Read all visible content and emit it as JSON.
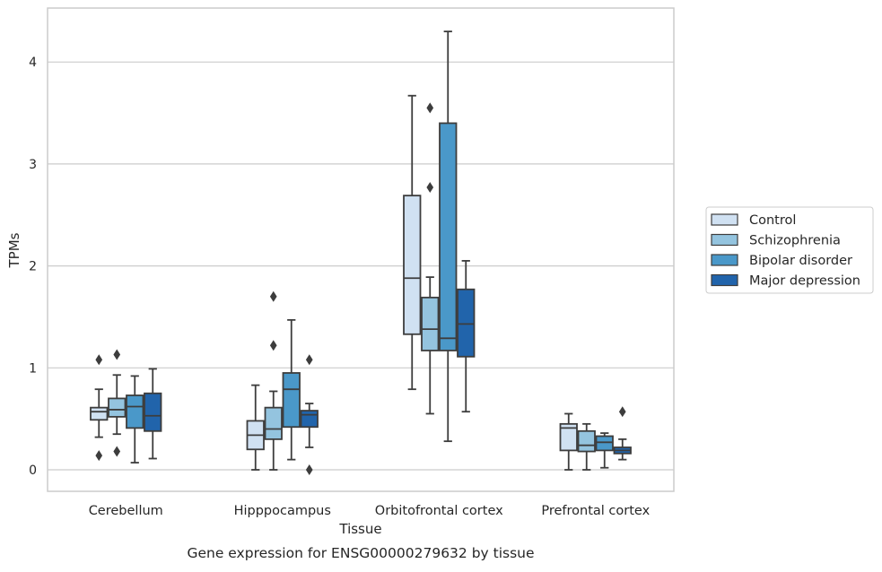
{
  "caption": "Gene expression for ENSG00000279632 by tissue",
  "chart_data": {
    "type": "box",
    "xlabel": "Tissue",
    "ylabel": "TPMs",
    "ylim": [
      -0.2,
      4.5
    ],
    "yticks": [
      0,
      1,
      2,
      3,
      4
    ],
    "grid": "horizontal",
    "legend_position": "right",
    "categories": [
      "Cerebellum",
      "Hipppocampus",
      "Orbitofrontal cortex",
      "Prefrontal cortex"
    ],
    "series": [
      {
        "name": "Control",
        "color": "#d0e1f2",
        "boxes": [
          {
            "whislo": 0.32,
            "q1": 0.49,
            "med": 0.57,
            "q3": 0.61,
            "whishi": 0.79,
            "fliers": [
              1.08,
              0.14
            ]
          },
          {
            "whislo": 0.0,
            "q1": 0.2,
            "med": 0.34,
            "q3": 0.48,
            "whishi": 0.83,
            "fliers": []
          },
          {
            "whislo": 0.79,
            "q1": 1.33,
            "med": 1.88,
            "q3": 2.69,
            "whishi": 3.67,
            "fliers": []
          },
          {
            "whislo": 0.0,
            "q1": 0.19,
            "med": 0.41,
            "q3": 0.45,
            "whishi": 0.55,
            "fliers": []
          }
        ]
      },
      {
        "name": "Schizophrenia",
        "color": "#94c4df",
        "boxes": [
          {
            "whislo": 0.35,
            "q1": 0.52,
            "med": 0.59,
            "q3": 0.7,
            "whishi": 0.93,
            "fliers": [
              1.13,
              0.18
            ]
          },
          {
            "whislo": 0.0,
            "q1": 0.3,
            "med": 0.4,
            "q3": 0.61,
            "whishi": 0.77,
            "fliers": [
              1.7,
              1.22
            ]
          },
          {
            "whislo": 0.55,
            "q1": 1.17,
            "med": 1.38,
            "q3": 1.69,
            "whishi": 1.89,
            "fliers": [
              3.55,
              2.77
            ]
          },
          {
            "whislo": 0.0,
            "q1": 0.18,
            "med": 0.24,
            "q3": 0.38,
            "whishi": 0.45,
            "fliers": []
          }
        ]
      },
      {
        "name": "Bipolar disorder",
        "color": "#4a98c9",
        "boxes": [
          {
            "whislo": 0.07,
            "q1": 0.41,
            "med": 0.62,
            "q3": 0.73,
            "whishi": 0.92,
            "fliers": []
          },
          {
            "whislo": 0.1,
            "q1": 0.42,
            "med": 0.79,
            "q3": 0.95,
            "whishi": 1.47,
            "fliers": []
          },
          {
            "whislo": 0.28,
            "q1": 1.17,
            "med": 1.29,
            "q3": 3.4,
            "whishi": 4.3,
            "fliers": []
          },
          {
            "whislo": 0.02,
            "q1": 0.19,
            "med": 0.27,
            "q3": 0.33,
            "whishi": 0.36,
            "fliers": []
          }
        ]
      },
      {
        "name": "Major depression",
        "color": "#2164ab",
        "boxes": [
          {
            "whislo": 0.11,
            "q1": 0.38,
            "med": 0.53,
            "q3": 0.75,
            "whishi": 0.99,
            "fliers": []
          },
          {
            "whislo": 0.22,
            "q1": 0.42,
            "med": 0.54,
            "q3": 0.58,
            "whishi": 0.65,
            "fliers": [
              1.08,
              0.0
            ]
          },
          {
            "whislo": 0.57,
            "q1": 1.11,
            "med": 1.43,
            "q3": 1.77,
            "whishi": 2.05,
            "fliers": []
          },
          {
            "whislo": 0.1,
            "q1": 0.16,
            "med": 0.19,
            "q3": 0.22,
            "whishi": 0.3,
            "fliers": [
              0.57
            ]
          }
        ]
      }
    ]
  }
}
